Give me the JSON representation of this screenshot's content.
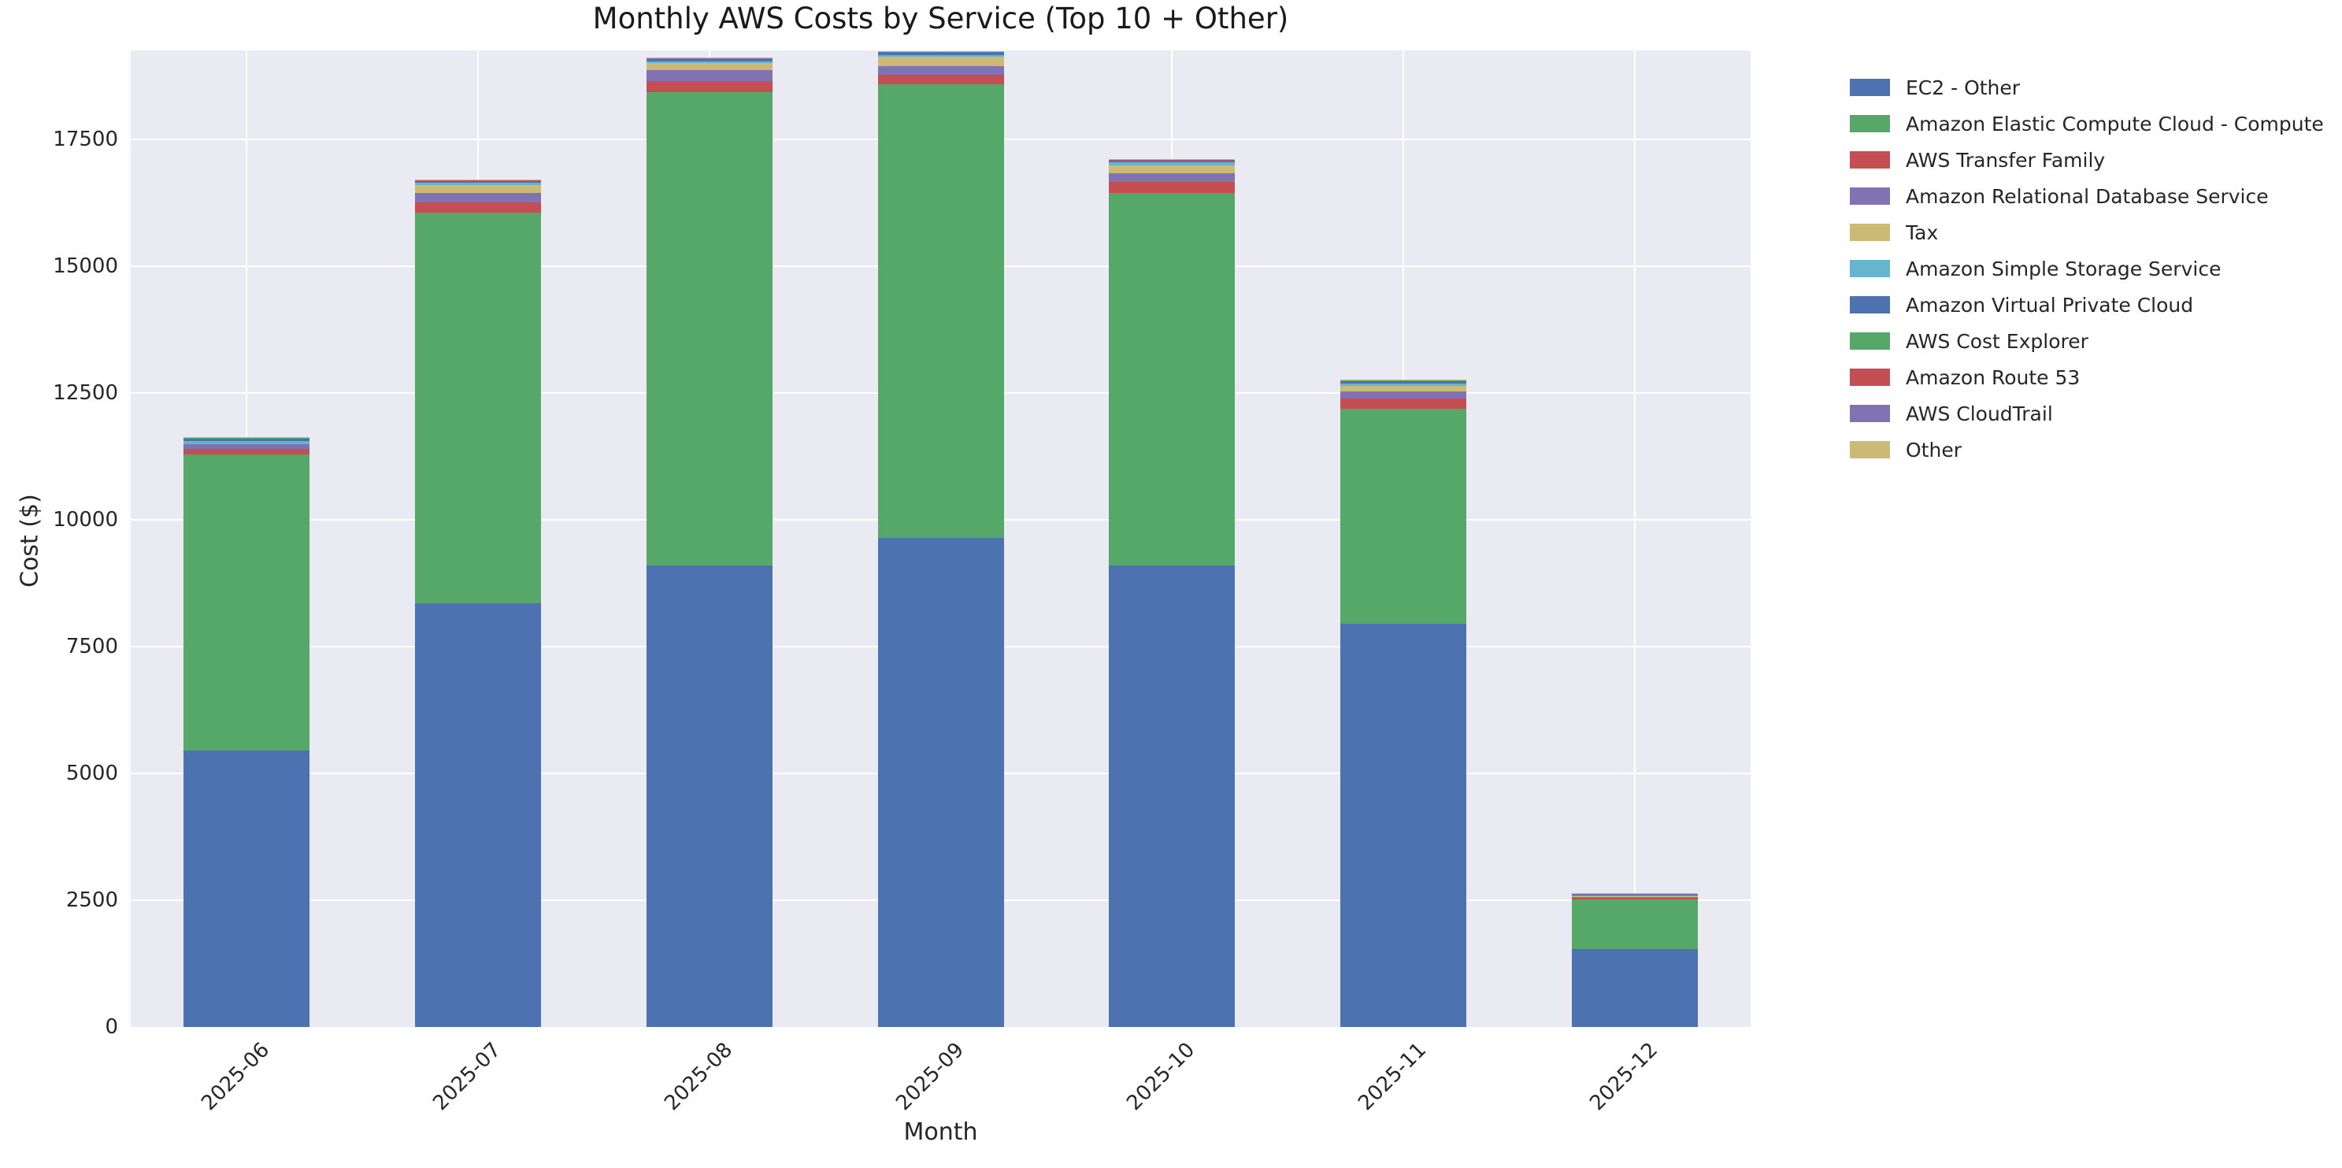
{
  "title": "Monthly AWS Costs by Service (Top 10 + Other)",
  "chart_data": {
    "type": "bar",
    "stacked": true,
    "title": "Monthly AWS Costs by Service (Top 10 + Other)",
    "xlabel": "Month",
    "ylabel": "Cost ($)",
    "categories": [
      "2025-06",
      "2025-07",
      "2025-08",
      "2025-09",
      "2025-10",
      "2025-11",
      "2025-12"
    ],
    "series": [
      {
        "name": "EC2 - Other",
        "color": "#4c72b0",
        "values": [
          5450,
          8355,
          9095,
          9650,
          9100,
          7950,
          1540
        ]
      },
      {
        "name": "Amazon Elastic Compute Cloud - Compute",
        "color": "#55a868",
        "values": [
          5835,
          7700,
          9340,
          8930,
          7340,
          4235,
          970
        ]
      },
      {
        "name": "AWS Transfer Family",
        "color": "#c44e52",
        "values": [
          115,
          205,
          215,
          190,
          220,
          205,
          45
        ]
      },
      {
        "name": "Amazon Relational Database Service",
        "color": "#8172b3",
        "values": [
          95,
          180,
          215,
          180,
          180,
          145,
          10
        ]
      },
      {
        "name": "Tax",
        "color": "#ccb974",
        "values": [
          0,
          155,
          140,
          180,
          145,
          105,
          30
        ]
      },
      {
        "name": "Amazon Simple Storage Service",
        "color": "#64b5cd",
        "values": [
          60,
          45,
          30,
          35,
          70,
          50,
          5
        ]
      },
      {
        "name": "Amazon Virtual Private Cloud",
        "color": "#4c72b0",
        "values": [
          60,
          50,
          60,
          65,
          40,
          60,
          20
        ]
      },
      {
        "name": "AWS Cost Explorer",
        "color": "#55a868",
        "values": [
          5,
          5,
          5,
          5,
          5,
          5,
          5
        ]
      },
      {
        "name": "Amazon Route 53",
        "color": "#c44e52",
        "values": [
          4,
          4,
          4,
          4,
          4,
          4,
          4
        ]
      },
      {
        "name": "AWS CloudTrail",
        "color": "#8172b3",
        "values": [
          3,
          3,
          3,
          3,
          3,
          3,
          3
        ]
      },
      {
        "name": "Other",
        "color": "#ccb974",
        "values": [
          3,
          3,
          3,
          3,
          3,
          3,
          3
        ]
      }
    ],
    "yticks": [
      0,
      2500,
      5000,
      7500,
      10000,
      12500,
      15000,
      17500
    ],
    "ylim": [
      0,
      19255
    ],
    "grid": true,
    "plot_background": "#eaeaf2",
    "grid_color": "#ffffff",
    "legend_position": "outside-right-top"
  }
}
